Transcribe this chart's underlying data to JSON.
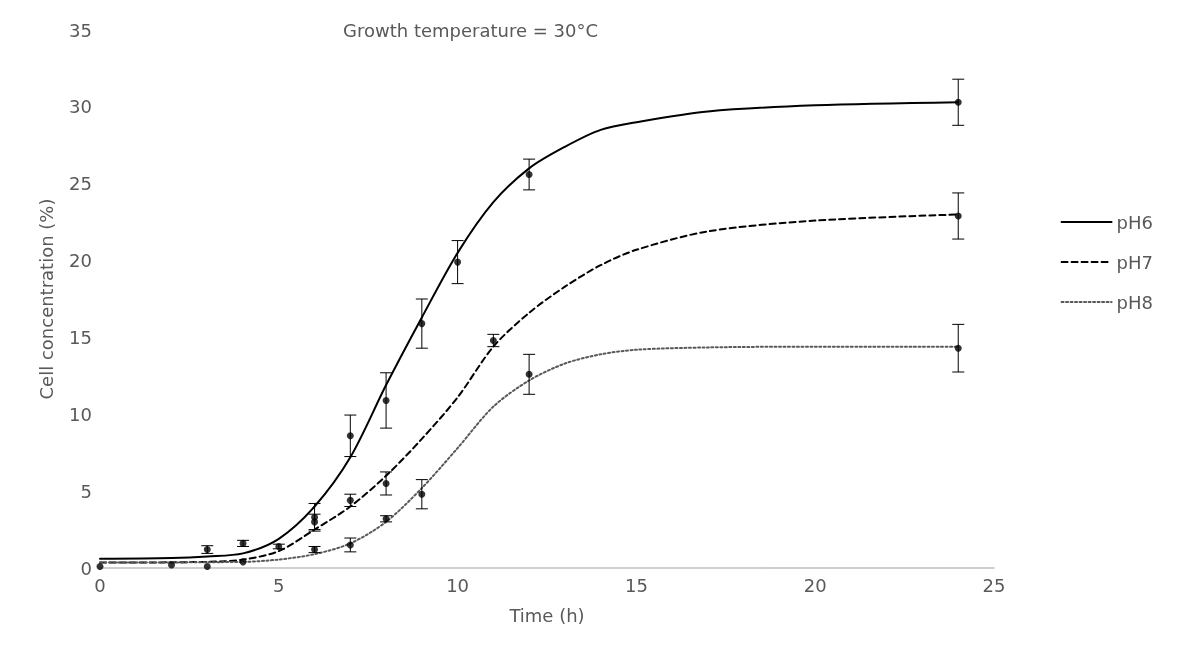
{
  "chart_data": {
    "type": "line",
    "title": "Growth temperature = 30°C",
    "xlabel": "Time (h)",
    "ylabel": "Cell concentration (%)",
    "xlim": [
      0,
      25
    ],
    "xticks": [
      0,
      5,
      10,
      15,
      20,
      25
    ],
    "ylim": [
      0,
      35
    ],
    "yticks": [
      0,
      5,
      10,
      15,
      20,
      25,
      30,
      35
    ],
    "grid": false,
    "legend": "right",
    "series": [
      {
        "name": "pH6",
        "color": "#000000",
        "line_style": "solid",
        "marker": "none",
        "x": [
          0,
          2,
          3,
          4,
          5,
          6,
          7,
          8,
          9,
          10,
          11,
          12,
          13,
          14,
          15,
          17,
          20,
          24
        ],
        "values": [
          0.6,
          0.65,
          0.75,
          0.95,
          1.9,
          4.0,
          7.2,
          11.9,
          16.3,
          20.5,
          23.8,
          26.0,
          27.4,
          28.5,
          29.0,
          29.7,
          30.1,
          30.3
        ]
      },
      {
        "name": "pH7",
        "color": "#000000",
        "line_style": "dashed",
        "marker": "none",
        "x": [
          0,
          3,
          4,
          5,
          6,
          7,
          8,
          9,
          10,
          11,
          12,
          13,
          14,
          15,
          17,
          20,
          24
        ],
        "values": [
          0.35,
          0.4,
          0.55,
          1.1,
          2.5,
          4.0,
          6.0,
          8.4,
          11.1,
          14.4,
          16.6,
          18.3,
          19.7,
          20.7,
          21.9,
          22.6,
          23.0
        ]
      },
      {
        "name": "pH8",
        "color": "#595959",
        "line_style": "dotted",
        "marker": "none",
        "x": [
          0,
          4,
          5,
          6,
          7,
          8,
          9,
          10,
          11,
          12,
          13,
          14,
          15,
          17,
          20,
          24
        ],
        "values": [
          0.35,
          0.4,
          0.55,
          0.9,
          1.6,
          3.0,
          5.2,
          7.8,
          10.5,
          12.2,
          13.3,
          13.9,
          14.2,
          14.35,
          14.4,
          14.4
        ]
      },
      {
        "type": "scatter",
        "color": "#000000",
        "marker": "circle",
        "x": [
          3,
          4,
          6,
          7,
          8,
          9,
          10,
          12,
          24
        ],
        "values": [
          1.2,
          1.6,
          3.3,
          8.6,
          10.9,
          15.9,
          19.9,
          25.6,
          30.3
        ],
        "errors": [
          0.25,
          0.2,
          0.9,
          1.35,
          1.8,
          1.6,
          1.4,
          1.0,
          1.5
        ]
      },
      {
        "type": "scatter",
        "color": "#000000",
        "marker": "circle",
        "x": [
          2,
          3,
          5,
          6,
          7,
          8,
          11,
          24
        ],
        "values": [
          0.2,
          0.1,
          1.4,
          3.0,
          4.4,
          5.5,
          14.8,
          22.9
        ],
        "errors": [
          null,
          null,
          0.15,
          0.5,
          0.4,
          0.75,
          0.4,
          1.5
        ]
      },
      {
        "type": "scatter",
        "color": "#000000",
        "marker": "circle",
        "x": [
          0,
          4,
          6,
          7,
          8,
          9,
          12,
          24
        ],
        "values": [
          0.1,
          0.4,
          1.2,
          1.5,
          3.2,
          4.8,
          12.6,
          14.3
        ],
        "errors": [
          null,
          null,
          0.2,
          0.45,
          0.2,
          0.95,
          1.3,
          1.55
        ]
      }
    ]
  }
}
